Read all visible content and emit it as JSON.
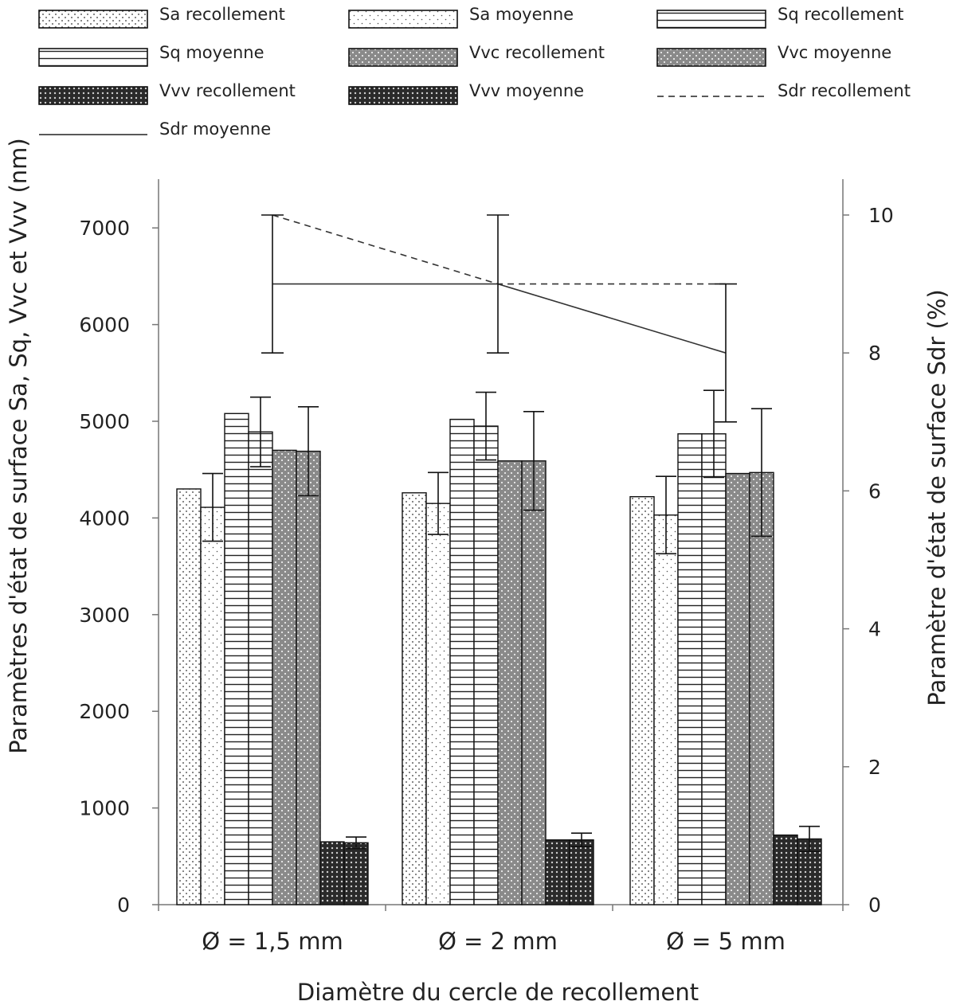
{
  "chart_data": {
    "type": "bar",
    "categories": [
      "Ø = 1,5 mm",
      "Ø = 2 mm",
      "Ø = 5 mm"
    ],
    "xlabel": "Diamètre du cercle de recollement",
    "ylabel": "Paramètres d'état de surface Sa, Sq, Vvc et Vvv (nm)",
    "y2label": "Paramètre d'état de surface Sdr (%)",
    "ylim": [
      0,
      7500
    ],
    "y2lim": [
      0,
      10.4
    ],
    "yticks": [
      0,
      1000,
      2000,
      3000,
      4000,
      5000,
      6000,
      7000
    ],
    "y2ticks": [
      0,
      2,
      4,
      6,
      8,
      10
    ],
    "grid": false,
    "legend_position": "top",
    "series": [
      {
        "name": "Sa recollement",
        "pattern": "sparse-dots",
        "values": [
          4300,
          4260,
          4220
        ],
        "errors": null
      },
      {
        "name": "Sa moyenne",
        "pattern": "sparse-dots-light",
        "values": [
          4110,
          4150,
          4030
        ],
        "errors": [
          350,
          320,
          400
        ]
      },
      {
        "name": "Sq recollement",
        "pattern": "horizontal-lines",
        "values": [
          5080,
          5020,
          4870
        ],
        "errors": null
      },
      {
        "name": "Sq moyenne",
        "pattern": "horizontal-lines",
        "values": [
          4890,
          4950,
          4870
        ],
        "errors": [
          360,
          350,
          450
        ]
      },
      {
        "name": "Vvc recollement",
        "pattern": "grey-dots",
        "values": [
          4700,
          4590,
          4460
        ],
        "errors": null
      },
      {
        "name": "Vvc moyenne",
        "pattern": "grey-dots",
        "values": [
          4690,
          4590,
          4470
        ],
        "errors": [
          460,
          510,
          660
        ]
      },
      {
        "name": "Vvv recollement",
        "pattern": "dark-crosshatch",
        "values": [
          650,
          670,
          720
        ],
        "errors": null
      },
      {
        "name": "Vvv moyenne",
        "pattern": "dark-crosshatch",
        "values": [
          640,
          670,
          680
        ],
        "errors": [
          60,
          70,
          130
        ]
      }
    ],
    "line_series": [
      {
        "name": "Sdr recollement",
        "style": "dashed",
        "axis": "right",
        "values": [
          10,
          9,
          9
        ],
        "errors": null
      },
      {
        "name": "Sdr moyenne",
        "style": "solid",
        "axis": "right",
        "values": [
          9,
          9,
          8
        ],
        "errors": [
          1,
          1,
          1
        ]
      }
    ]
  }
}
